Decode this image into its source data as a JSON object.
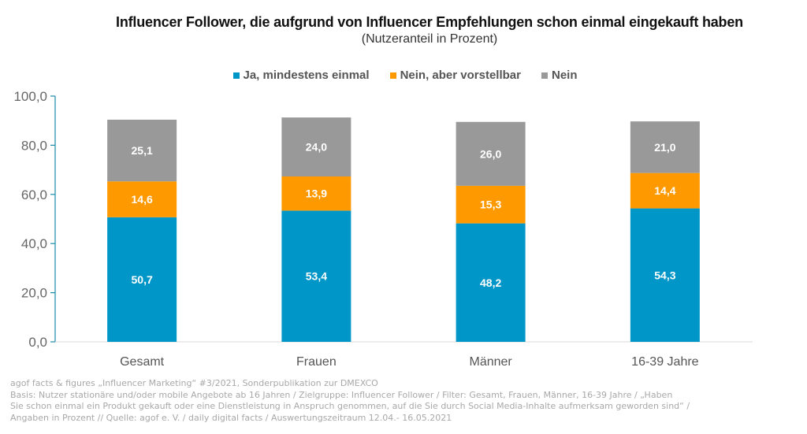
{
  "chart_data": {
    "type": "bar",
    "stacked": true,
    "title": "Influencer Follower, die aufgrund von Influencer Empfehlungen schon einmal eingekauft haben",
    "subtitle": "(Nutzeranteil in Prozent)",
    "xlabel": "",
    "ylabel": "",
    "ylim": [
      0,
      100
    ],
    "yticks": [
      0,
      20,
      40,
      60,
      80,
      100
    ],
    "ytick_labels": [
      "0,0",
      "20,0",
      "40,0",
      "60,0",
      "80,0",
      "100,0"
    ],
    "grid": false,
    "legend_position": "top-center",
    "categories": [
      "Gesamt",
      "Frauen",
      "Männer",
      "16-39 Jahre"
    ],
    "series": [
      {
        "name": "Ja, mindestens einmal",
        "color": "#0096c8",
        "values": [
          50.7,
          53.4,
          48.2,
          54.3
        ],
        "labels": [
          "50,7",
          "53,4",
          "48,2",
          "54,3"
        ]
      },
      {
        "name": "Nein, aber vorstellbar",
        "color": "#ff9900",
        "values": [
          14.6,
          13.9,
          15.3,
          14.4
        ],
        "labels": [
          "14,6",
          "13,9",
          "15,3",
          "14,4"
        ]
      },
      {
        "name": "Nein",
        "color": "#999999",
        "values": [
          25.1,
          24.0,
          26.0,
          21.0
        ],
        "labels": [
          "25,1",
          "24,0",
          "26,0",
          "21,0"
        ]
      }
    ]
  },
  "footer": {
    "lines": [
      "agof facts & figures „Influencer Marketing“ #3/2021,  Sonderpublikation  zur DMEXCO",
      "Basis: Nutzer stationäre und/oder mobile Angebote  ab 16 Jahren / Zielgruppe:  Influencer Follower  / Filter:  Gesamt, Frauen, Männer, 16-39  Jahre / „Haben",
      "Sie schon einmal ein Produkt gekauft oder eine Dienstleistung in Anspruch genommen, auf die Sie durch Social Media-Inhalte aufmerksam geworden sind“ /",
      "Angaben in Prozent // Quelle:  agof e. V. / daily digital facts / Auswertungszeitraum 12.04.-  16.05.2021"
    ]
  }
}
